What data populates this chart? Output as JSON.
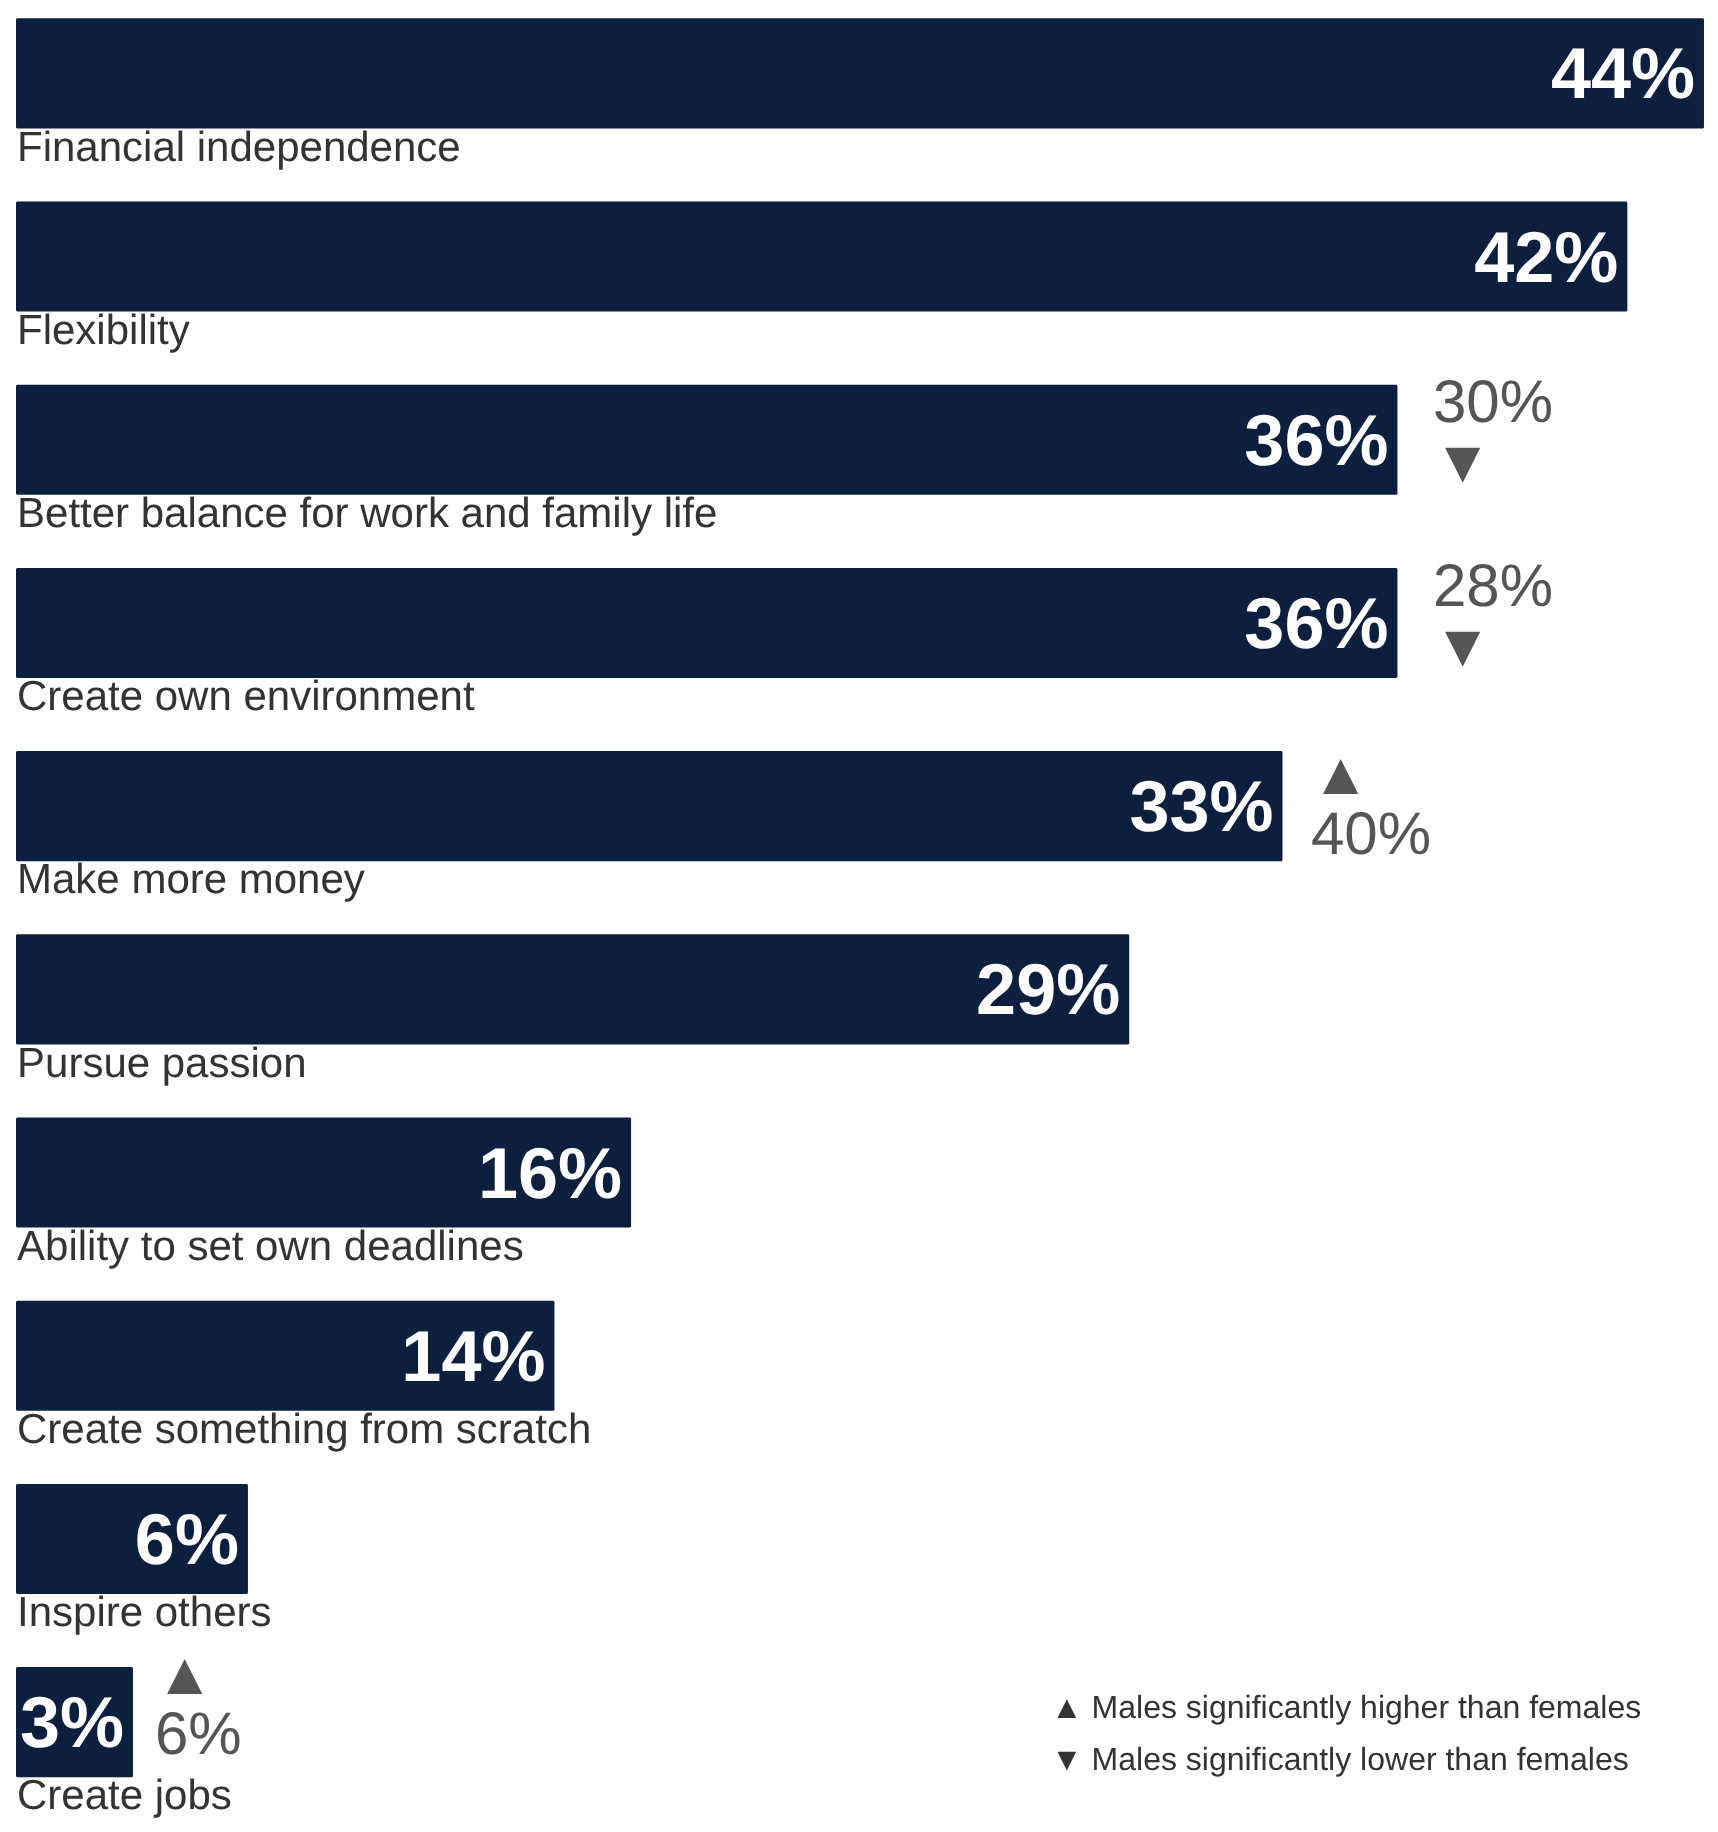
{
  "chart_data": {
    "type": "bar",
    "orientation": "horizontal",
    "value_labels": [
      "44%",
      "42%",
      "36%",
      "36%",
      "33%",
      "29%",
      "16%",
      "14%",
      "6%",
      "3%"
    ],
    "color": "#0c1f3f",
    "categories": [
      "Financial independence",
      "Flexibility",
      "Better balance for work and family life",
      "Create own environment",
      "Make more money",
      "Pursue passion",
      "Ability to set own deadlines",
      "Create something from scratch",
      "Inspire others",
      "Create jobs"
    ],
    "values": [
      44,
      42,
      36,
      36,
      33,
      29,
      16,
      14,
      6,
      3
    ],
    "annotations": [
      "30%\n▼",
      "28%\n▼",
      "▲\n40%",
      "▲\n6%",
      "▲ Males significantly higher than females",
      "▼ Males significantly lower than females"
    ]
  }
}
